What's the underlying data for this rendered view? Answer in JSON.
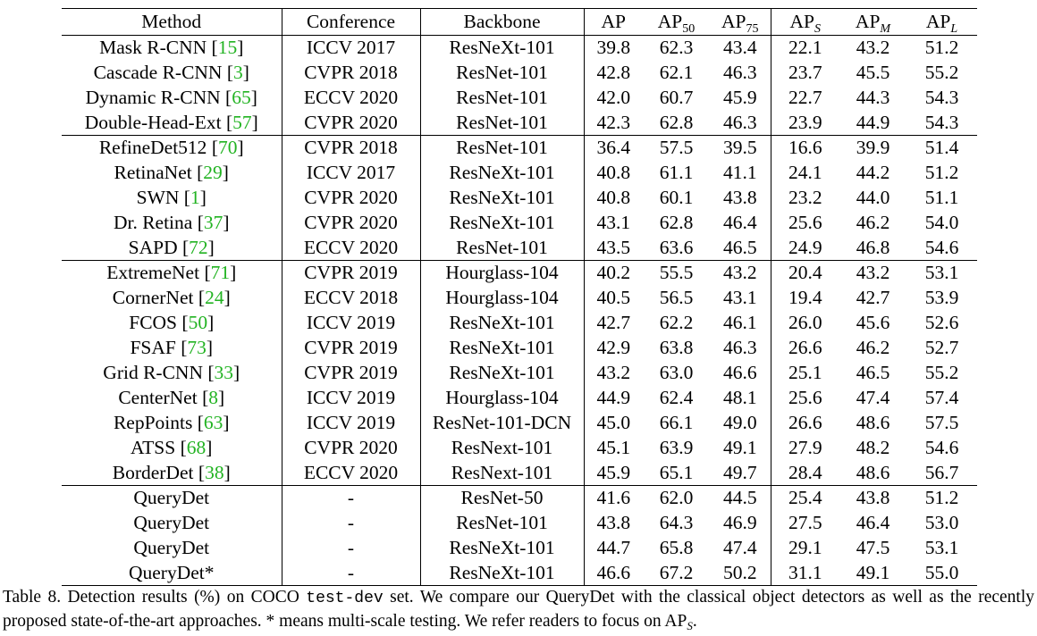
{
  "table": {
    "headers": {
      "method": "Method",
      "conference": "Conference",
      "backbone": "Backbone",
      "ap": "AP",
      "ap50_base": "AP",
      "ap50_sub": "50",
      "ap75_base": "AP",
      "ap75_sub": "75",
      "aps_base": "AP",
      "aps_sub": "S",
      "apm_base": "AP",
      "apm_sub": "M",
      "apl_base": "AP",
      "apl_sub": "L"
    },
    "groups": [
      [
        {
          "method": "Mask R-CNN",
          "ref": "15",
          "conf": "ICCV 2017",
          "backbone": "ResNeXt-101",
          "ap": "39.8",
          "ap50": "62.3",
          "ap75": "43.4",
          "aps": "22.1",
          "apm": "43.2",
          "apl": "51.2"
        },
        {
          "method": "Cascade R-CNN",
          "ref": "3",
          "conf": "CVPR 2018",
          "backbone": "ResNet-101",
          "ap": "42.8",
          "ap50": "62.1",
          "ap75": "46.3",
          "aps": "23.7",
          "apm": "45.5",
          "apl": "55.2"
        },
        {
          "method": "Dynamic R-CNN",
          "ref": "65",
          "conf": "ECCV 2020",
          "backbone": "ResNet-101",
          "ap": "42.0",
          "ap50": "60.7",
          "ap75": "45.9",
          "aps": "22.7",
          "apm": "44.3",
          "apl": "54.3"
        },
        {
          "method": "Double-Head-Ext",
          "ref": "57",
          "conf": "CVPR 2020",
          "backbone": "ResNet-101",
          "ap": "42.3",
          "ap50": "62.8",
          "ap75": "46.3",
          "aps": "23.9",
          "apm": "44.9",
          "apl": "54.3"
        }
      ],
      [
        {
          "method": "RefineDet512",
          "ref": "70",
          "conf": "CVPR 2018",
          "backbone": "ResNet-101",
          "ap": "36.4",
          "ap50": "57.5",
          "ap75": "39.5",
          "aps": "16.6",
          "apm": "39.9",
          "apl": "51.4"
        },
        {
          "method": "RetinaNet",
          "ref": "29",
          "conf": "ICCV 2017",
          "backbone": "ResNeXt-101",
          "ap": "40.8",
          "ap50": "61.1",
          "ap75": "41.1",
          "aps": "24.1",
          "apm": "44.2",
          "apl": "51.2"
        },
        {
          "method": "SWN",
          "ref": "1",
          "conf": "CVPR 2020",
          "backbone": "ResNeXt-101",
          "ap": "40.8",
          "ap50": "60.1",
          "ap75": "43.8",
          "aps": "23.2",
          "apm": "44.0",
          "apl": "51.1"
        },
        {
          "method": "Dr. Retina",
          "ref": "37",
          "conf": "CVPR 2020",
          "backbone": "ResNeXt-101",
          "ap": "43.1",
          "ap50": "62.8",
          "ap75": "46.4",
          "aps": "25.6",
          "apm": "46.2",
          "apl": "54.0"
        },
        {
          "method": "SAPD",
          "ref": "72",
          "conf": "ECCV 2020",
          "backbone": "ResNet-101",
          "ap": "43.5",
          "ap50": "63.6",
          "ap75": "46.5",
          "aps": "24.9",
          "apm": "46.8",
          "apl": "54.6"
        }
      ],
      [
        {
          "method": "ExtremeNet",
          "ref": "71",
          "conf": "CVPR 2019",
          "backbone": "Hourglass-104",
          "ap": "40.2",
          "ap50": "55.5",
          "ap75": "43.2",
          "aps": "20.4",
          "apm": "43.2",
          "apl": "53.1"
        },
        {
          "method": "CornerNet",
          "ref": "24",
          "conf": "ECCV 2018",
          "backbone": "Hourglass-104",
          "ap": "40.5",
          "ap50": "56.5",
          "ap75": "43.1",
          "aps": "19.4",
          "apm": "42.7",
          "apl": "53.9"
        },
        {
          "method": "FCOS",
          "ref": "50",
          "conf": "ICCV 2019",
          "backbone": "ResNeXt-101",
          "ap": "42.7",
          "ap50": "62.2",
          "ap75": "46.1",
          "aps": "26.0",
          "apm": "45.6",
          "apl": "52.6"
        },
        {
          "method": "FSAF",
          "ref": "73",
          "conf": "CVPR 2019",
          "backbone": "ResNeXt-101",
          "ap": "42.9",
          "ap50": "63.8",
          "ap75": "46.3",
          "aps": "26.6",
          "apm": "46.2",
          "apl": "52.7"
        },
        {
          "method": "Grid R-CNN",
          "ref": "33",
          "conf": "CVPR 2019",
          "backbone": "ResNeXt-101",
          "ap": "43.2",
          "ap50": "63.0",
          "ap75": "46.6",
          "aps": "25.1",
          "apm": "46.5",
          "apl": "55.2"
        },
        {
          "method": "CenterNet",
          "ref": "8",
          "conf": "ICCV 2019",
          "backbone": "Hourglass-104",
          "ap": "44.9",
          "ap50": "62.4",
          "ap75": "48.1",
          "aps": "25.6",
          "apm": "47.4",
          "apl": "57.4"
        },
        {
          "method": "RepPoints",
          "ref": "63",
          "conf": "ICCV 2019",
          "backbone": "ResNet-101-DCN",
          "ap": "45.0",
          "ap50": "66.1",
          "ap75": "49.0",
          "aps": "26.6",
          "apm": "48.6",
          "apl": "57.5"
        },
        {
          "method": "ATSS",
          "ref": "68",
          "conf": "CVPR 2020",
          "backbone": "ResNext-101",
          "ap": "45.1",
          "ap50": "63.9",
          "ap75": "49.1",
          "aps": "27.9",
          "apm": "48.2",
          "apl": "54.6"
        },
        {
          "method": "BorderDet",
          "ref": "38",
          "conf": "ECCV 2020",
          "backbone": "ResNext-101",
          "ap": "45.9",
          "ap50": "65.1",
          "ap75": "49.7",
          "aps": "28.4",
          "apm": "48.6",
          "apl": "56.7"
        }
      ],
      [
        {
          "method": "QueryDet",
          "ref": "",
          "conf": "-",
          "backbone": "ResNet-50",
          "ap": "41.6",
          "ap50": "62.0",
          "ap75": "44.5",
          "aps": "25.4",
          "apm": "43.8",
          "apl": "51.2"
        },
        {
          "method": "QueryDet",
          "ref": "",
          "conf": "-",
          "backbone": "ResNet-101",
          "ap": "43.8",
          "ap50": "64.3",
          "ap75": "46.9",
          "aps": "27.5",
          "apm": "46.4",
          "apl": "53.0"
        },
        {
          "method": "QueryDet",
          "ref": "",
          "conf": "-",
          "backbone": "ResNeXt-101",
          "ap": "44.7",
          "ap50": "65.8",
          "ap75": "47.4",
          "aps": "29.1",
          "apm": "47.5",
          "apl": "53.1"
        },
        {
          "method": "QueryDet*",
          "ref": "",
          "conf": "-",
          "backbone": "ResNeXt-101",
          "ap": "46.6",
          "ap50": "67.2",
          "ap75": "50.2",
          "aps": "31.1",
          "apm": "49.1",
          "apl": "55.0"
        }
      ]
    ]
  },
  "caption": {
    "part1": "Table 8. Detection results (%) on COCO ",
    "code": "test-dev",
    "part2": " set. We compare our QueryDet with the classical object detectors as well as the recently proposed state-of-the-art approaches. * means multi-scale testing. We refer readers to focus on AP",
    "sub": "S",
    "part3": "."
  },
  "colors": {
    "citation": "#22b322",
    "text": "#000000"
  }
}
